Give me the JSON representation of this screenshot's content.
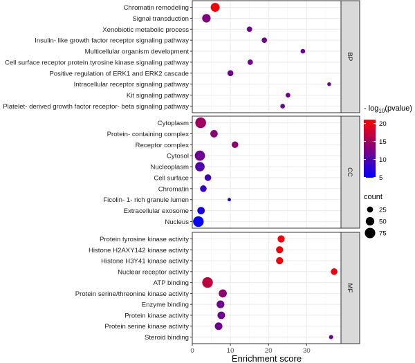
{
  "chart_data": {
    "type": "scatter",
    "xlabel": "Enrichment score",
    "xlim": [
      0,
      39
    ],
    "xticks": [
      0,
      10,
      20,
      30
    ],
    "grid": true,
    "legend_placement": "right",
    "color_legend": {
      "title_prefix": "- log",
      "title_sub": "10",
      "title_suffix": "(pvalue)",
      "ticks": [
        5,
        10,
        15,
        20
      ],
      "range": [
        4.9,
        21.1
      ],
      "low_color": "#0000ff",
      "high_color": "#ff0000"
    },
    "size_legend": {
      "title": "count",
      "ticks": [
        25,
        50,
        75
      ]
    },
    "panels": [
      {
        "name": "BP",
        "terms": [
          {
            "term": "Chromatin remodeling",
            "x": 6.0,
            "neglog10p": 20.5,
            "count": 55
          },
          {
            "term": "Signal transduction",
            "x": 3.7,
            "neglog10p": 13,
            "count": 50
          },
          {
            "term": "Xenobiotic metabolic process",
            "x": 15.0,
            "neglog10p": 12,
            "count": 20
          },
          {
            "term": "Insulin- like growth factor receptor signaling pathway",
            "x": 18.9,
            "neglog10p": 12,
            "count": 20
          },
          {
            "term": "Multicellular organism development",
            "x": 29.0,
            "neglog10p": 12,
            "count": 15
          },
          {
            "term": "Cell surface receptor protein tyrosine kinase signaling pathway",
            "x": 15.2,
            "neglog10p": 12,
            "count": 20
          },
          {
            "term": "Positive regulation of ERK1 and ERK2 cascade",
            "x": 10.0,
            "neglog10p": 12,
            "count": 25
          },
          {
            "term": "Intracellular receptor signaling pathway",
            "x": 35.9,
            "neglog10p": 12,
            "count": 10
          },
          {
            "term": "Kit signaling pathway",
            "x": 25.1,
            "neglog10p": 12,
            "count": 15
          },
          {
            "term": "Platelet- derived growth factor receptor- beta signaling pathway",
            "x": 23.7,
            "neglog10p": 12,
            "count": 15
          }
        ]
      },
      {
        "name": "CC",
        "terms": [
          {
            "term": "Cytoplasm",
            "x": 2.2,
            "neglog10p": 15,
            "count": 80
          },
          {
            "term": "Protein- containing complex",
            "x": 5.7,
            "neglog10p": 14,
            "count": 38
          },
          {
            "term": "Receptor complex",
            "x": 11.2,
            "neglog10p": 14,
            "count": 30
          },
          {
            "term": "Cytosol",
            "x": 2.0,
            "neglog10p": 12,
            "count": 72
          },
          {
            "term": "Nucleoplasm",
            "x": 2.0,
            "neglog10p": 10,
            "count": 62
          },
          {
            "term": "Cell surface",
            "x": 4.1,
            "neglog10p": 9,
            "count": 30
          },
          {
            "term": "Chromatin",
            "x": 2.9,
            "neglog10p": 8,
            "count": 30
          },
          {
            "term": "Ficolin- 1- rich granule lumen",
            "x": 9.7,
            "neglog10p": 6,
            "count": 8
          },
          {
            "term": "Extracellular exosome",
            "x": 2.3,
            "neglog10p": 6.5,
            "count": 38
          },
          {
            "term": "Nucleus",
            "x": 1.6,
            "neglog10p": 5,
            "count": 78
          }
        ]
      },
      {
        "name": "MF",
        "terms": [
          {
            "term": "Protein tyrosine kinase activity",
            "x": 23.3,
            "neglog10p": 20.5,
            "count": 35
          },
          {
            "term": "Histone H2AXY142 kinase activity",
            "x": 22.9,
            "neglog10p": 20.5,
            "count": 35
          },
          {
            "term": "Histone H3Y41 kinase activity",
            "x": 22.9,
            "neglog10p": 20.5,
            "count": 35
          },
          {
            "term": "Nuclear receptor activity",
            "x": 37.2,
            "neglog10p": 20,
            "count": 30
          },
          {
            "term": "ATP binding",
            "x": 4.0,
            "neglog10p": 17,
            "count": 78
          },
          {
            "term": "Protein serine/threonine kinase activity",
            "x": 8.0,
            "neglog10p": 14,
            "count": 45
          },
          {
            "term": "Enzyme binding",
            "x": 7.4,
            "neglog10p": 12,
            "count": 42
          },
          {
            "term": "Protein kinase activity",
            "x": 7.6,
            "neglog10p": 12,
            "count": 40
          },
          {
            "term": "Protein serine kinase activity",
            "x": 6.9,
            "neglog10p": 12,
            "count": 40
          },
          {
            "term": "Steroid binding",
            "x": 36.4,
            "neglog10p": 12,
            "count": 12
          }
        ]
      }
    ]
  }
}
